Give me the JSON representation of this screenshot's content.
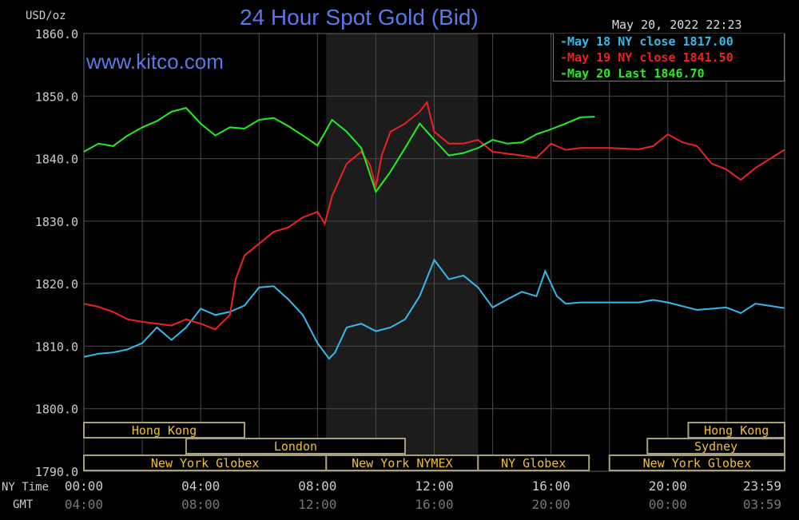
{
  "header": {
    "unit": "USD/oz",
    "title": "24 Hour Spot Gold (Bid)",
    "watermark": "www.kitco.com",
    "datetime": "May 20, 2022 22:23"
  },
  "chart_data": {
    "type": "line",
    "title": "24 Hour Spot Gold (Bid)",
    "ylabel": "USD/oz",
    "ylim": [
      1790,
      1860
    ],
    "yticks": [
      "1860.0",
      "1850.0",
      "1840.0",
      "1830.0",
      "1820.0",
      "1810.0",
      "1800.0",
      "1790.0"
    ],
    "xlim": [
      0,
      24
    ],
    "x_row_labels": {
      "ny": "NY Time",
      "gmt": "GMT"
    },
    "xticks_ny": [
      "00:00",
      "04:00",
      "08:00",
      "12:00",
      "16:00",
      "20:00",
      "23:59"
    ],
    "xticks_gmt": [
      "04:00",
      "08:00",
      "12:00",
      "16:00",
      "20:00",
      "00:00",
      "03:59"
    ],
    "legend": [
      {
        "label": "-May 18 NY close 1817.00",
        "color": "#33bbee"
      },
      {
        "label": "-May 19 NY close 1841.50",
        "color": "#ee2222"
      },
      {
        "label": "-May 20 Last 1846.70",
        "color": "#22ee22"
      }
    ],
    "highlight_hours": [
      8.3,
      13.5
    ],
    "series": [
      {
        "name": "May 18",
        "color": "#33bbee",
        "points": [
          [
            0,
            1808.3
          ],
          [
            0.5,
            1808.8
          ],
          [
            1,
            1809
          ],
          [
            1.5,
            1809.5
          ],
          [
            2,
            1810.5
          ],
          [
            2.5,
            1813
          ],
          [
            3,
            1811
          ],
          [
            3.5,
            1813
          ],
          [
            4,
            1816
          ],
          [
            4.5,
            1815
          ],
          [
            5,
            1815.5
          ],
          [
            5.5,
            1816.5
          ],
          [
            6,
            1819.4
          ],
          [
            6.5,
            1819.6
          ],
          [
            7,
            1817.5
          ],
          [
            7.5,
            1815
          ],
          [
            8,
            1810.5
          ],
          [
            8.4,
            1808
          ],
          [
            8.6,
            1809
          ],
          [
            9,
            1813
          ],
          [
            9.5,
            1813.6
          ],
          [
            10,
            1812.4
          ],
          [
            10.5,
            1813
          ],
          [
            11,
            1814.3
          ],
          [
            11.5,
            1818
          ],
          [
            12,
            1823.8
          ],
          [
            12.5,
            1820.7
          ],
          [
            13,
            1821.3
          ],
          [
            13.5,
            1819.4
          ],
          [
            14,
            1816.2
          ],
          [
            14.5,
            1817.5
          ],
          [
            15,
            1818.7
          ],
          [
            15.5,
            1818
          ],
          [
            15.8,
            1822
          ],
          [
            16.2,
            1818
          ],
          [
            16.5,
            1816.8
          ],
          [
            17,
            1817
          ],
          [
            18,
            1817
          ],
          [
            19,
            1817
          ],
          [
            19.5,
            1817.4
          ],
          [
            20,
            1817
          ],
          [
            20.5,
            1816.4
          ],
          [
            21,
            1815.8
          ],
          [
            22,
            1816.2
          ],
          [
            22.5,
            1815.3
          ],
          [
            23,
            1816.8
          ],
          [
            23.99,
            1816.1
          ]
        ]
      },
      {
        "name": "May 19",
        "color": "#ee2222",
        "points": [
          [
            0,
            1816.8
          ],
          [
            0.5,
            1816.3
          ],
          [
            1,
            1815.5
          ],
          [
            1.5,
            1814.3
          ],
          [
            2,
            1813.9
          ],
          [
            3,
            1813.3
          ],
          [
            3.5,
            1814.3
          ],
          [
            4,
            1813.6
          ],
          [
            4.5,
            1812.7
          ],
          [
            5,
            1815
          ],
          [
            5.2,
            1820.7
          ],
          [
            5.5,
            1824.5
          ],
          [
            6,
            1826.4
          ],
          [
            6.5,
            1828.3
          ],
          [
            7,
            1829
          ],
          [
            7.5,
            1830.6
          ],
          [
            8,
            1831.5
          ],
          [
            8.25,
            1829.6
          ],
          [
            8.5,
            1834
          ],
          [
            9,
            1839.2
          ],
          [
            9.5,
            1841.1
          ],
          [
            9.8,
            1839
          ],
          [
            10,
            1835.4
          ],
          [
            10.2,
            1840.5
          ],
          [
            10.5,
            1844.3
          ],
          [
            11,
            1845.6
          ],
          [
            11.5,
            1847.5
          ],
          [
            11.75,
            1849
          ],
          [
            12,
            1844.3
          ],
          [
            12.5,
            1842.4
          ],
          [
            13,
            1842.4
          ],
          [
            13.5,
            1843
          ],
          [
            14,
            1841.1
          ],
          [
            15,
            1840.5
          ],
          [
            15.5,
            1840.1
          ],
          [
            16,
            1842.4
          ],
          [
            16.5,
            1841.4
          ],
          [
            17,
            1841.7
          ],
          [
            18,
            1841.7
          ],
          [
            19,
            1841.5
          ],
          [
            19.5,
            1842
          ],
          [
            20,
            1843.9
          ],
          [
            20.5,
            1842.6
          ],
          [
            21,
            1842
          ],
          [
            21.5,
            1839.2
          ],
          [
            22,
            1838.3
          ],
          [
            22.5,
            1836.6
          ],
          [
            23,
            1838.5
          ],
          [
            23.99,
            1841.4
          ]
        ]
      },
      {
        "name": "May 20",
        "color": "#22ee22",
        "points": [
          [
            0,
            1841.1
          ],
          [
            0.5,
            1842.4
          ],
          [
            1,
            1842
          ],
          [
            1.5,
            1843.7
          ],
          [
            2,
            1845
          ],
          [
            2.5,
            1846
          ],
          [
            3,
            1847.5
          ],
          [
            3.5,
            1848.1
          ],
          [
            4,
            1845.6
          ],
          [
            4.5,
            1843.7
          ],
          [
            5,
            1845
          ],
          [
            5.5,
            1844.8
          ],
          [
            6,
            1846.2
          ],
          [
            6.5,
            1846.5
          ],
          [
            7,
            1845.2
          ],
          [
            7.5,
            1843.7
          ],
          [
            8,
            1842.1
          ],
          [
            8.5,
            1846.2
          ],
          [
            9,
            1844.3
          ],
          [
            9.5,
            1841.7
          ],
          [
            10,
            1834.7
          ],
          [
            10.5,
            1837.9
          ],
          [
            11,
            1841.7
          ],
          [
            11.5,
            1845.6
          ],
          [
            12,
            1843
          ],
          [
            12.5,
            1840.5
          ],
          [
            13,
            1840.9
          ],
          [
            13.5,
            1841.7
          ],
          [
            14,
            1843
          ],
          [
            14.5,
            1842.4
          ],
          [
            15,
            1842.6
          ],
          [
            15.5,
            1843.9
          ],
          [
            16,
            1844.7
          ],
          [
            16.5,
            1845.6
          ],
          [
            17,
            1846.6
          ],
          [
            17.5,
            1846.7
          ]
        ]
      }
    ],
    "sessions": [
      {
        "label": "Hong Kong",
        "row": 0,
        "start": 0,
        "end": 5.5
      },
      {
        "label": "Hong Kong",
        "row": 0,
        "start": 20.7,
        "end": 24
      },
      {
        "label": "London",
        "row": 1,
        "start": 3.5,
        "end": 11
      },
      {
        "label": "Sydney",
        "row": 1,
        "start": 19.3,
        "end": 24
      },
      {
        "label": "New York Globex",
        "row": 2,
        "start": 0,
        "end": 8.3
      },
      {
        "label": "New York NYMEX",
        "row": 2,
        "start": 8.3,
        "end": 13.5
      },
      {
        "label": "NY Globex",
        "row": 2,
        "start": 13.5,
        "end": 17.3
      },
      {
        "label": "New York Globex",
        "row": 2,
        "start": 18,
        "end": 24
      }
    ]
  }
}
